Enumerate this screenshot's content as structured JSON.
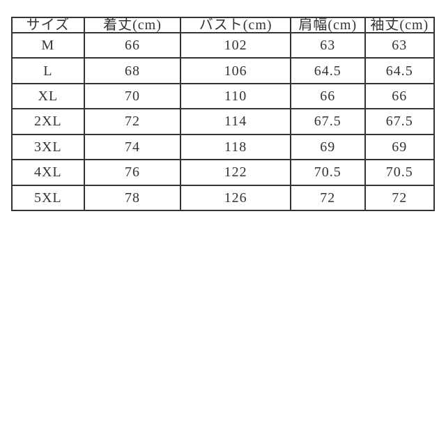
{
  "colors": {
    "background": "#ffffff",
    "border": "#333333",
    "text": "#333333"
  },
  "chart_data": {
    "type": "table",
    "columns": [
      "サイズ",
      "着丈(cm)",
      "バスト(cm)",
      "肩幅(cm)",
      "袖丈(cm)"
    ],
    "rows": [
      [
        "M",
        "66",
        "102",
        "63",
        "63"
      ],
      [
        "L",
        "68",
        "106",
        "64.5",
        "64.5"
      ],
      [
        "XL",
        "70",
        "110",
        "66",
        "66"
      ],
      [
        "2XL",
        "72",
        "114",
        "67.5",
        "67.5"
      ],
      [
        "3XL",
        "74",
        "118",
        "69",
        "69"
      ],
      [
        "4XL",
        "76",
        "122",
        "70.5",
        "70.5"
      ],
      [
        "5XL",
        "78",
        "126",
        "72",
        "72"
      ]
    ]
  }
}
